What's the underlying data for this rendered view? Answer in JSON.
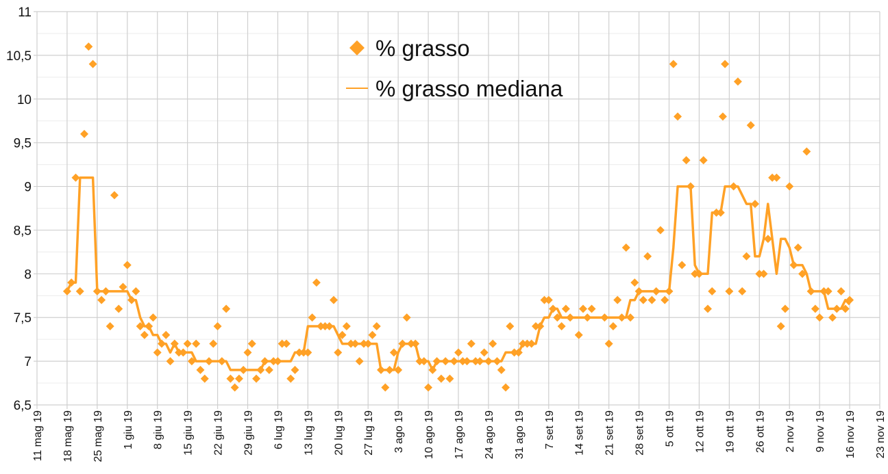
{
  "chart_data": {
    "type": "line",
    "title": "",
    "xlabel": "",
    "ylabel": "",
    "ylim": [
      6.5,
      11
    ],
    "x_unit": "days since 11 mag 19",
    "xlim": [
      0,
      196
    ],
    "grid": true,
    "legend_placement": "top-center",
    "accent_color": "#ffa126",
    "yticks": [
      {
        "v": 6.5,
        "label": "6,5"
      },
      {
        "v": 7,
        "label": "7"
      },
      {
        "v": 7.5,
        "label": "7,5"
      },
      {
        "v": 8,
        "label": "8"
      },
      {
        "v": 8.5,
        "label": "8,5"
      },
      {
        "v": 9,
        "label": "9"
      },
      {
        "v": 9.5,
        "label": "9,5"
      },
      {
        "v": 10,
        "label": "10"
      },
      {
        "v": 10.5,
        "label": "10,5"
      },
      {
        "v": 11,
        "label": "11"
      }
    ],
    "xticks": [
      {
        "d": 0,
        "label": "11 mag 19"
      },
      {
        "d": 7,
        "label": "18 mag 19"
      },
      {
        "d": 14,
        "label": "25 mag 19"
      },
      {
        "d": 21,
        "label": "1 giu 19"
      },
      {
        "d": 28,
        "label": "8 giu 19"
      },
      {
        "d": 35,
        "label": "15 giu 19"
      },
      {
        "d": 42,
        "label": "22 giu 19"
      },
      {
        "d": 49,
        "label": "29 giu 19"
      },
      {
        "d": 56,
        "label": "6 lug 19"
      },
      {
        "d": 63,
        "label": "13 lug 19"
      },
      {
        "d": 70,
        "label": "20 lug 19"
      },
      {
        "d": 77,
        "label": "27 lug 19"
      },
      {
        "d": 84,
        "label": "3 ago 19"
      },
      {
        "d": 91,
        "label": "10 ago 19"
      },
      {
        "d": 98,
        "label": "17 ago 19"
      },
      {
        "d": 105,
        "label": "24 ago 19"
      },
      {
        "d": 112,
        "label": "31 ago 19"
      },
      {
        "d": 119,
        "label": "7 set 19"
      },
      {
        "d": 126,
        "label": "14 set 19"
      },
      {
        "d": 133,
        "label": "21 set 19"
      },
      {
        "d": 140,
        "label": "28 set 19"
      },
      {
        "d": 147,
        "label": "5 ott 19"
      },
      {
        "d": 154,
        "label": "12 ott 19"
      },
      {
        "d": 161,
        "label": "19 ott 19"
      },
      {
        "d": 168,
        "label": "26 ott 19"
      },
      {
        "d": 175,
        "label": "2 nov 19"
      },
      {
        "d": 182,
        "label": "9 nov 19"
      },
      {
        "d": 189,
        "label": "16 nov 19"
      },
      {
        "d": 196,
        "label": "23 nov 19"
      }
    ],
    "series": [
      {
        "name": "% grasso",
        "kind": "scatter",
        "points": [
          [
            7,
            7.8
          ],
          [
            8,
            7.9
          ],
          [
            9,
            9.1
          ],
          [
            10,
            7.8
          ],
          [
            11,
            9.6
          ],
          [
            12,
            10.6
          ],
          [
            13,
            10.4
          ],
          [
            14,
            7.8
          ],
          [
            15,
            7.7
          ],
          [
            16,
            7.8
          ],
          [
            17,
            7.4
          ],
          [
            18,
            8.9
          ],
          [
            19,
            7.6
          ],
          [
            20,
            7.85
          ],
          [
            21,
            8.1
          ],
          [
            22,
            7.7
          ],
          [
            23,
            7.8
          ],
          [
            24,
            7.4
          ],
          [
            25,
            7.3
          ],
          [
            26,
            7.4
          ],
          [
            27,
            7.5
          ],
          [
            28,
            7.1
          ],
          [
            29,
            7.2
          ],
          [
            30,
            7.3
          ],
          [
            31,
            7.0
          ],
          [
            32,
            7.2
          ],
          [
            33,
            7.1
          ],
          [
            34,
            7.1
          ],
          [
            35,
            7.2
          ],
          [
            36,
            7.0
          ],
          [
            37,
            7.2
          ],
          [
            38,
            6.9
          ],
          [
            39,
            6.8
          ],
          [
            40,
            7.0
          ],
          [
            41,
            7.2
          ],
          [
            42,
            7.4
          ],
          [
            43,
            7.0
          ],
          [
            44,
            7.6
          ],
          [
            45,
            6.8
          ],
          [
            46,
            6.7
          ],
          [
            47,
            6.8
          ],
          [
            48,
            6.9
          ],
          [
            49,
            7.1
          ],
          [
            50,
            7.2
          ],
          [
            51,
            6.8
          ],
          [
            52,
            6.9
          ],
          [
            53,
            7.0
          ],
          [
            54,
            6.9
          ],
          [
            55,
            7.0
          ],
          [
            56,
            7.0
          ],
          [
            57,
            7.2
          ],
          [
            58,
            7.2
          ],
          [
            59,
            6.8
          ],
          [
            60,
            6.9
          ],
          [
            61,
            7.1
          ],
          [
            62,
            7.1
          ],
          [
            63,
            7.1
          ],
          [
            64,
            7.5
          ],
          [
            65,
            7.9
          ],
          [
            66,
            7.4
          ],
          [
            67,
            7.4
          ],
          [
            68,
            7.4
          ],
          [
            69,
            7.7
          ],
          [
            70,
            7.1
          ],
          [
            71,
            7.3
          ],
          [
            72,
            7.4
          ],
          [
            73,
            7.2
          ],
          [
            74,
            7.2
          ],
          [
            75,
            7.0
          ],
          [
            76,
            7.2
          ],
          [
            77,
            7.2
          ],
          [
            78,
            7.3
          ],
          [
            79,
            7.4
          ],
          [
            80,
            6.9
          ],
          [
            81,
            6.7
          ],
          [
            82,
            6.9
          ],
          [
            83,
            7.1
          ],
          [
            84,
            6.9
          ],
          [
            85,
            7.2
          ],
          [
            86,
            7.5
          ],
          [
            87,
            7.2
          ],
          [
            88,
            7.2
          ],
          [
            89,
            7.0
          ],
          [
            90,
            7.0
          ],
          [
            91,
            6.7
          ],
          [
            92,
            6.9
          ],
          [
            93,
            7.0
          ],
          [
            94,
            6.8
          ],
          [
            95,
            7.0
          ],
          [
            96,
            6.8
          ],
          [
            97,
            7.0
          ],
          [
            98,
            7.1
          ],
          [
            99,
            7.0
          ],
          [
            100,
            7.0
          ],
          [
            101,
            7.2
          ],
          [
            102,
            7.0
          ],
          [
            103,
            7.0
          ],
          [
            104,
            7.1
          ],
          [
            105,
            7.0
          ],
          [
            106,
            7.2
          ],
          [
            107,
            7.0
          ],
          [
            108,
            6.9
          ],
          [
            109,
            6.7
          ],
          [
            110,
            7.4
          ],
          [
            111,
            7.1
          ],
          [
            112,
            7.1
          ],
          [
            113,
            7.2
          ],
          [
            114,
            7.2
          ],
          [
            115,
            7.2
          ],
          [
            116,
            7.4
          ],
          [
            117,
            7.4
          ],
          [
            118,
            7.7
          ],
          [
            119,
            7.7
          ],
          [
            120,
            7.6
          ],
          [
            121,
            7.5
          ],
          [
            122,
            7.4
          ],
          [
            123,
            7.6
          ],
          [
            124,
            7.5
          ],
          [
            126,
            7.3
          ],
          [
            127,
            7.6
          ],
          [
            128,
            7.5
          ],
          [
            129,
            7.6
          ],
          [
            132,
            7.5
          ],
          [
            133,
            7.2
          ],
          [
            134,
            7.4
          ],
          [
            135,
            7.7
          ],
          [
            136,
            7.5
          ],
          [
            137,
            8.3
          ],
          [
            138,
            7.5
          ],
          [
            139,
            7.9
          ],
          [
            140,
            7.8
          ],
          [
            141,
            7.7
          ],
          [
            142,
            8.2
          ],
          [
            143,
            7.7
          ],
          [
            144,
            7.8
          ],
          [
            145,
            8.5
          ],
          [
            146,
            7.7
          ],
          [
            147,
            7.8
          ],
          [
            148,
            10.4
          ],
          [
            149,
            9.8
          ],
          [
            150,
            8.1
          ],
          [
            151,
            9.3
          ],
          [
            152,
            9.0
          ],
          [
            153,
            8.0
          ],
          [
            154,
            8.0
          ],
          [
            155,
            9.3
          ],
          [
            156,
            7.6
          ],
          [
            157,
            7.8
          ],
          [
            158,
            8.7
          ],
          [
            159,
            8.7
          ],
          [
            159.5,
            9.8
          ],
          [
            160,
            10.4
          ],
          [
            161,
            7.8
          ],
          [
            162,
            9.0
          ],
          [
            163,
            10.2
          ],
          [
            164,
            7.8
          ],
          [
            165,
            8.2
          ],
          [
            166,
            9.7
          ],
          [
            167,
            8.8
          ],
          [
            168,
            8.0
          ],
          [
            169,
            8.0
          ],
          [
            170,
            8.4
          ],
          [
            171,
            9.1
          ],
          [
            172,
            9.1
          ],
          [
            173,
            7.4
          ],
          [
            174,
            7.6
          ],
          [
            175,
            9.0
          ],
          [
            176,
            8.1
          ],
          [
            177,
            8.3
          ],
          [
            178,
            8.0
          ],
          [
            179,
            9.4
          ],
          [
            180,
            7.8
          ],
          [
            181,
            7.6
          ],
          [
            182,
            7.5
          ],
          [
            183,
            7.8
          ],
          [
            184,
            7.8
          ],
          [
            185,
            7.5
          ],
          [
            186,
            7.6
          ],
          [
            187,
            7.8
          ],
          [
            188,
            7.6
          ],
          [
            189,
            7.7
          ]
        ]
      },
      {
        "name": "% grasso mediana",
        "kind": "line",
        "points": [
          [
            7,
            7.8
          ],
          [
            8,
            7.9
          ],
          [
            9,
            7.9
          ],
          [
            10,
            9.1
          ],
          [
            13,
            9.1
          ],
          [
            14,
            7.8
          ],
          [
            21,
            7.8
          ],
          [
            22,
            7.7
          ],
          [
            23,
            7.7
          ],
          [
            24,
            7.5
          ],
          [
            25,
            7.4
          ],
          [
            26,
            7.4
          ],
          [
            27,
            7.3
          ],
          [
            28,
            7.3
          ],
          [
            29,
            7.2
          ],
          [
            30,
            7.2
          ],
          [
            31,
            7.1
          ],
          [
            32,
            7.2
          ],
          [
            33,
            7.1
          ],
          [
            36,
            7.1
          ],
          [
            37,
            7.0
          ],
          [
            44,
            7.0
          ],
          [
            45,
            6.9
          ],
          [
            52,
            6.9
          ],
          [
            53,
            7.0
          ],
          [
            59,
            7.0
          ],
          [
            60,
            7.1
          ],
          [
            62,
            7.1
          ],
          [
            63,
            7.4
          ],
          [
            69,
            7.4
          ],
          [
            70,
            7.3
          ],
          [
            71,
            7.2
          ],
          [
            79,
            7.2
          ],
          [
            80,
            6.9
          ],
          [
            83,
            6.9
          ],
          [
            84,
            7.1
          ],
          [
            85,
            7.2
          ],
          [
            88,
            7.2
          ],
          [
            89,
            7.0
          ],
          [
            91,
            7.0
          ],
          [
            92,
            6.9
          ],
          [
            93,
            7.0
          ],
          [
            108,
            7.0
          ],
          [
            109,
            7.1
          ],
          [
            112,
            7.1
          ],
          [
            113,
            7.2
          ],
          [
            116,
            7.2
          ],
          [
            117,
            7.4
          ],
          [
            118,
            7.5
          ],
          [
            119,
            7.5
          ],
          [
            120,
            7.6
          ],
          [
            121,
            7.6
          ],
          [
            122,
            7.5
          ],
          [
            137,
            7.5
          ],
          [
            138,
            7.7
          ],
          [
            139,
            7.7
          ],
          [
            140,
            7.8
          ],
          [
            147,
            7.8
          ],
          [
            148,
            8.3
          ],
          [
            149,
            9.0
          ],
          [
            152,
            9.0
          ],
          [
            153,
            8.1
          ],
          [
            154,
            8.0
          ],
          [
            156,
            8.0
          ],
          [
            157,
            8.7
          ],
          [
            158,
            8.7
          ],
          [
            159,
            8.7
          ],
          [
            160,
            9.0
          ],
          [
            162,
            9.0
          ],
          [
            163,
            9.0
          ],
          [
            164,
            8.9
          ],
          [
            165,
            8.8
          ],
          [
            166,
            8.8
          ],
          [
            167,
            8.2
          ],
          [
            168,
            8.2
          ],
          [
            169,
            8.4
          ],
          [
            170,
            8.8
          ],
          [
            171,
            8.4
          ],
          [
            172,
            8.0
          ],
          [
            173,
            8.4
          ],
          [
            174,
            8.4
          ],
          [
            175,
            8.3
          ],
          [
            176,
            8.1
          ],
          [
            178,
            8.1
          ],
          [
            179,
            8.0
          ],
          [
            180,
            7.8
          ],
          [
            183,
            7.8
          ],
          [
            184,
            7.6
          ],
          [
            187,
            7.6
          ],
          [
            188,
            7.7
          ],
          [
            189,
            7.65
          ]
        ]
      }
    ],
    "legend": {
      "scatter_label": "% grasso",
      "line_label": "% grasso mediana"
    }
  }
}
